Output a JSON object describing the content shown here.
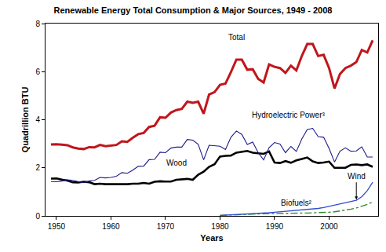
{
  "chart_data": {
    "type": "line",
    "title": "Renewable Energy Total Consumption & Major Sources, 1949 - 2008",
    "x_label": "Years",
    "y_label": "Quadrillion BTU",
    "x": [
      1949,
      1950,
      1951,
      1952,
      1953,
      1954,
      1955,
      1956,
      1957,
      1958,
      1959,
      1960,
      1961,
      1962,
      1963,
      1964,
      1965,
      1966,
      1967,
      1968,
      1969,
      1970,
      1971,
      1972,
      1973,
      1974,
      1975,
      1976,
      1977,
      1978,
      1979,
      1980,
      1981,
      1982,
      1983,
      1984,
      1985,
      1986,
      1987,
      1988,
      1989,
      1990,
      1991,
      1992,
      1993,
      1994,
      1995,
      1996,
      1997,
      1998,
      1999,
      2000,
      2001,
      2002,
      2003,
      2004,
      2005,
      2006,
      2007,
      2008
    ],
    "series": [
      {
        "name": "Wood",
        "color": "#000000",
        "line_style": "solid",
        "values": [
          1.55,
          1.56,
          1.51,
          1.47,
          1.4,
          1.39,
          1.42,
          1.4,
          1.32,
          1.34,
          1.32,
          1.32,
          1.3,
          1.32,
          1.32,
          1.34,
          1.34,
          1.37,
          1.34,
          1.42,
          1.44,
          1.43,
          1.43,
          1.5,
          1.53,
          1.54,
          1.5,
          1.71,
          1.84,
          2.04,
          2.15,
          2.47,
          2.5,
          2.51,
          2.63,
          2.66,
          2.7,
          2.63,
          2.6,
          2.58,
          2.68,
          2.22,
          2.2,
          2.28,
          2.21,
          2.31,
          2.37,
          2.43,
          2.27,
          2.2,
          2.22,
          2.26,
          2.0,
          1.99,
          2.0,
          2.12,
          2.14,
          2.11,
          2.14,
          2.04
        ]
      },
      {
        "name": "Hydroelectric Power³",
        "color": "#1a1a8c",
        "line_style": "solid",
        "values": [
          1.43,
          1.42,
          1.45,
          1.5,
          1.48,
          1.42,
          1.38,
          1.45,
          1.48,
          1.6,
          1.58,
          1.6,
          1.65,
          1.8,
          1.77,
          1.9,
          2.06,
          2.07,
          2.34,
          2.35,
          2.65,
          2.63,
          2.82,
          2.86,
          2.86,
          3.18,
          3.15,
          2.98,
          2.33,
          2.94,
          2.93,
          2.9,
          2.76,
          3.27,
          3.53,
          3.39,
          2.97,
          3.07,
          2.63,
          2.33,
          2.84,
          3.05,
          2.99,
          2.63,
          2.89,
          2.68,
          3.2,
          3.59,
          3.64,
          3.3,
          3.27,
          2.81,
          2.24,
          2.69,
          2.83,
          2.69,
          2.7,
          2.87,
          2.45,
          2.45
        ]
      },
      {
        "name": "Biofuels²",
        "color": "#2e8b2e",
        "line_style": "dashdot",
        "values": [
          null,
          null,
          null,
          null,
          null,
          null,
          null,
          null,
          null,
          null,
          null,
          null,
          null,
          null,
          null,
          null,
          null,
          null,
          null,
          null,
          null,
          null,
          null,
          null,
          null,
          null,
          null,
          null,
          null,
          null,
          null,
          0.02,
          0.03,
          0.04,
          0.06,
          0.07,
          0.08,
          0.09,
          0.09,
          0.1,
          0.1,
          0.1,
          0.1,
          0.11,
          0.11,
          0.12,
          0.12,
          0.12,
          0.13,
          0.13,
          0.14,
          0.15,
          0.17,
          0.2,
          0.24,
          0.28,
          0.33,
          0.4,
          0.48,
          0.58
        ]
      },
      {
        "name": "Wind",
        "color": "#3050d0",
        "line_style": "solid",
        "values": [
          null,
          null,
          null,
          null,
          null,
          null,
          null,
          null,
          null,
          null,
          null,
          null,
          null,
          null,
          null,
          null,
          null,
          null,
          null,
          null,
          null,
          null,
          null,
          null,
          null,
          null,
          null,
          null,
          null,
          null,
          null,
          0.02,
          0.03,
          0.04,
          0.05,
          0.06,
          0.08,
          0.09,
          0.1,
          0.12,
          0.13,
          0.15,
          0.17,
          0.18,
          0.2,
          0.22,
          0.25,
          0.27,
          0.29,
          0.31,
          0.35,
          0.4,
          0.44,
          0.48,
          0.55,
          0.6,
          0.65,
          0.8,
          1.05,
          1.4
        ]
      },
      {
        "name": "Total",
        "color": "#c0161c",
        "line_style": "solid",
        "values": [
          2.97,
          2.98,
          2.96,
          2.94,
          2.85,
          2.8,
          2.78,
          2.86,
          2.85,
          2.95,
          2.9,
          2.93,
          2.95,
          3.1,
          3.08,
          3.25,
          3.4,
          3.45,
          3.7,
          3.75,
          4.1,
          4.08,
          4.3,
          4.4,
          4.45,
          4.75,
          4.7,
          4.75,
          4.25,
          5.05,
          5.15,
          5.45,
          5.5,
          5.98,
          6.5,
          6.5,
          6.08,
          6.1,
          5.7,
          5.55,
          6.3,
          6.2,
          6.15,
          5.95,
          6.25,
          6.05,
          6.65,
          7.15,
          7.15,
          6.65,
          6.7,
          6.15,
          5.3,
          5.9,
          6.15,
          6.25,
          6.4,
          6.9,
          6.8,
          7.3
        ]
      }
    ],
    "xlim": [
      1948,
      2009
    ],
    "ylim": [
      0,
      8
    ],
    "xticks": [
      1950,
      1960,
      1970,
      1980,
      1990,
      2000
    ],
    "yticks": [
      0,
      2,
      4,
      6,
      8
    ],
    "grid": false
  }
}
